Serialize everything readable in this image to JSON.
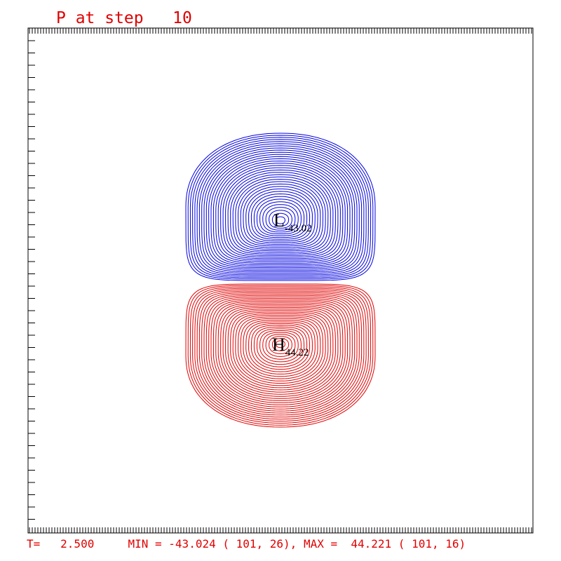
{
  "header": {
    "title": "P at step   10"
  },
  "plot": {
    "low": {
      "letter": "L",
      "value": "-43.02"
    },
    "high": {
      "letter": "H",
      "value": "44.22"
    }
  },
  "footer": {
    "text": "T=   2.500     MIN = -43.024 ( 101, 26), MAX =  44.221 ( 101, 16)"
  }
}
